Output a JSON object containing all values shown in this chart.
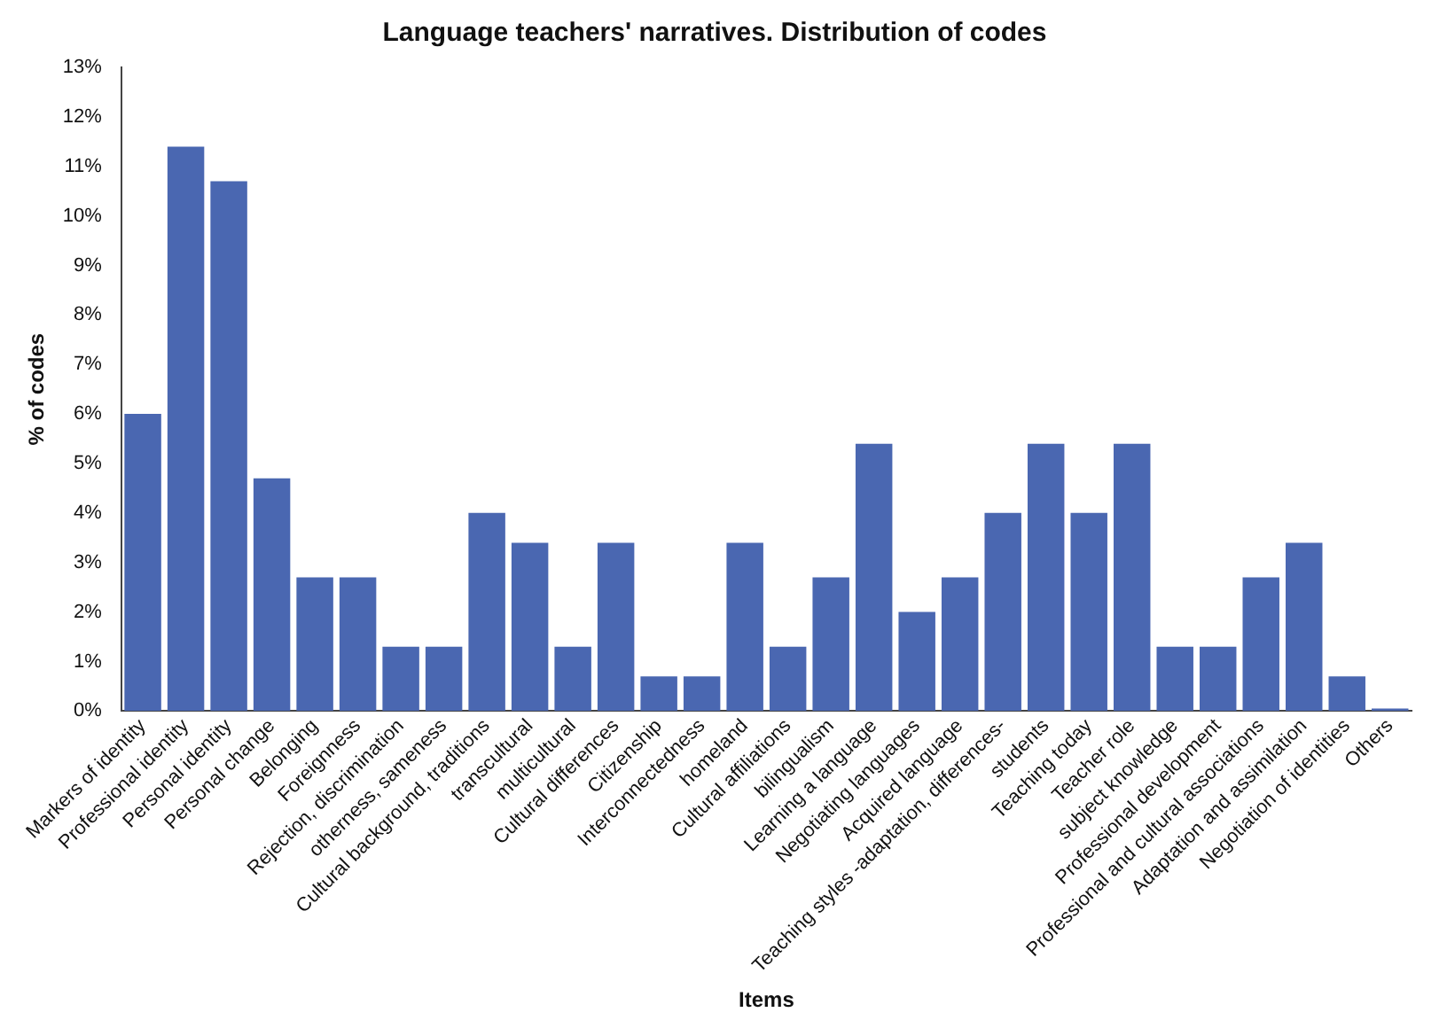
{
  "chart_data": {
    "type": "bar",
    "title": "Language teachers' narratives. Distribution of codes",
    "xlabel": "Items",
    "ylabel": "% of codes",
    "categories": [
      "Markers of identity",
      "Professional identity",
      "Personal identity",
      "Personal change",
      "Belonging",
      "Foreignness",
      "Rejection, discrimination",
      "otherness, sameness",
      "Cultural background, traditions",
      "transcultural",
      "multicultural",
      "Cultural differences",
      "Citizenship",
      "Interconnectedness",
      "homeland",
      "Cultural affiliations",
      "bilingualism",
      "Learning a language",
      "Negotiating languages",
      "Acquired language",
      "Teaching styles -adaptation, differences-",
      "students",
      "Teaching today",
      "Teacher role",
      "subject knowledge",
      "Professional development",
      "Professional and cultural associations",
      "Adaptation and assimilation",
      "Negotiation of identities",
      "Others"
    ],
    "values": [
      6.0,
      11.4,
      10.7,
      4.7,
      2.7,
      2.7,
      1.3,
      1.3,
      4.0,
      3.4,
      1.3,
      3.4,
      0.7,
      0.7,
      3.4,
      1.3,
      2.7,
      5.4,
      2.0,
      2.7,
      4.0,
      5.4,
      4.0,
      5.4,
      1.3,
      1.3,
      2.7,
      3.4,
      0.7,
      0.05
    ],
    "color": "#4a67b1",
    "ylim": [
      0,
      13
    ],
    "yticks": [
      {
        "value": 0,
        "label": "0%"
      },
      {
        "value": 1,
        "label": "1%"
      },
      {
        "value": 2,
        "label": "2%"
      },
      {
        "value": 3,
        "label": "3%"
      },
      {
        "value": 4,
        "label": "4%"
      },
      {
        "value": 5,
        "label": "5%"
      },
      {
        "value": 6,
        "label": "6%"
      },
      {
        "value": 7,
        "label": "7%"
      },
      {
        "value": 8,
        "label": "8%"
      },
      {
        "value": 9,
        "label": "9%"
      },
      {
        "value": 10,
        "label": "10%"
      },
      {
        "value": 11,
        "label": "11%"
      },
      {
        "value": 12,
        "label": "12%"
      },
      {
        "value": 13,
        "label": "13%"
      }
    ],
    "grid": false,
    "legend": false
  }
}
